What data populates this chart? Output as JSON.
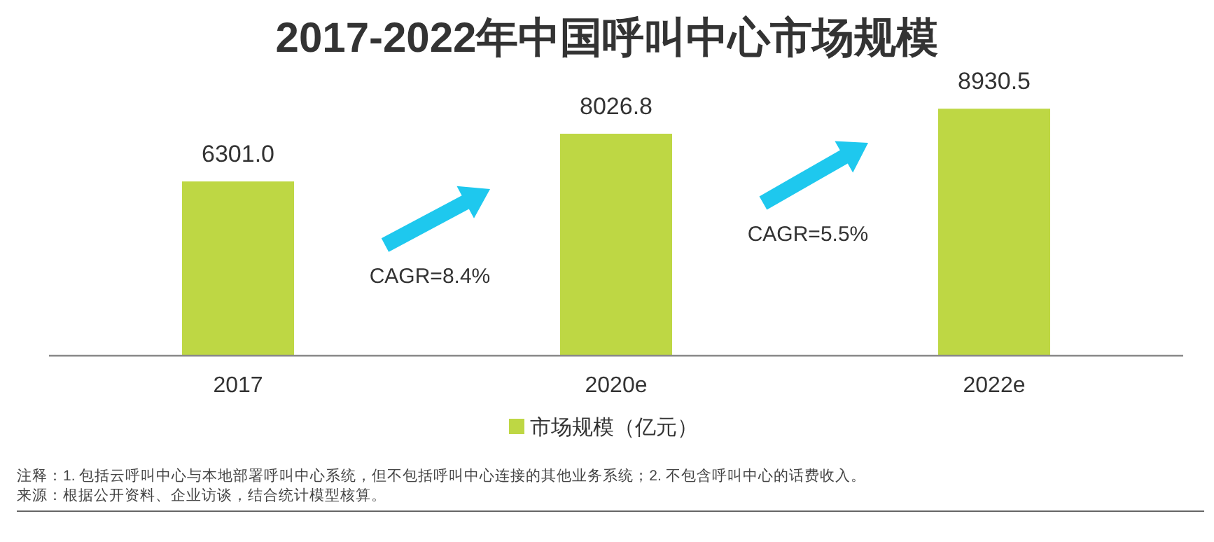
{
  "chart_data": {
    "type": "bar",
    "title": "2017-2022年中国呼叫中心市场规模",
    "categories": [
      "2017",
      "2020e",
      "2022e"
    ],
    "series": [
      {
        "name": "市场规模（亿元）",
        "color": "#bed744",
        "values": [
          6301.0,
          8026.8,
          8930.5
        ],
        "value_labels": [
          "6301.0",
          "8026.8",
          "8930.5"
        ]
      }
    ],
    "legend": "bottom",
    "annotations": [
      "CAGR=8.4%",
      "CAGR=5.5%",
      "注释：1. 包括云呼叫中心与本地部署呼叫中心系统，但不包括呼叫中心连接的其他业务系统；2. 不包含呼叫中心的话费收入。",
      "来源：根据公开资料、企业访谈，结合统计模型核算。"
    ]
  }
}
